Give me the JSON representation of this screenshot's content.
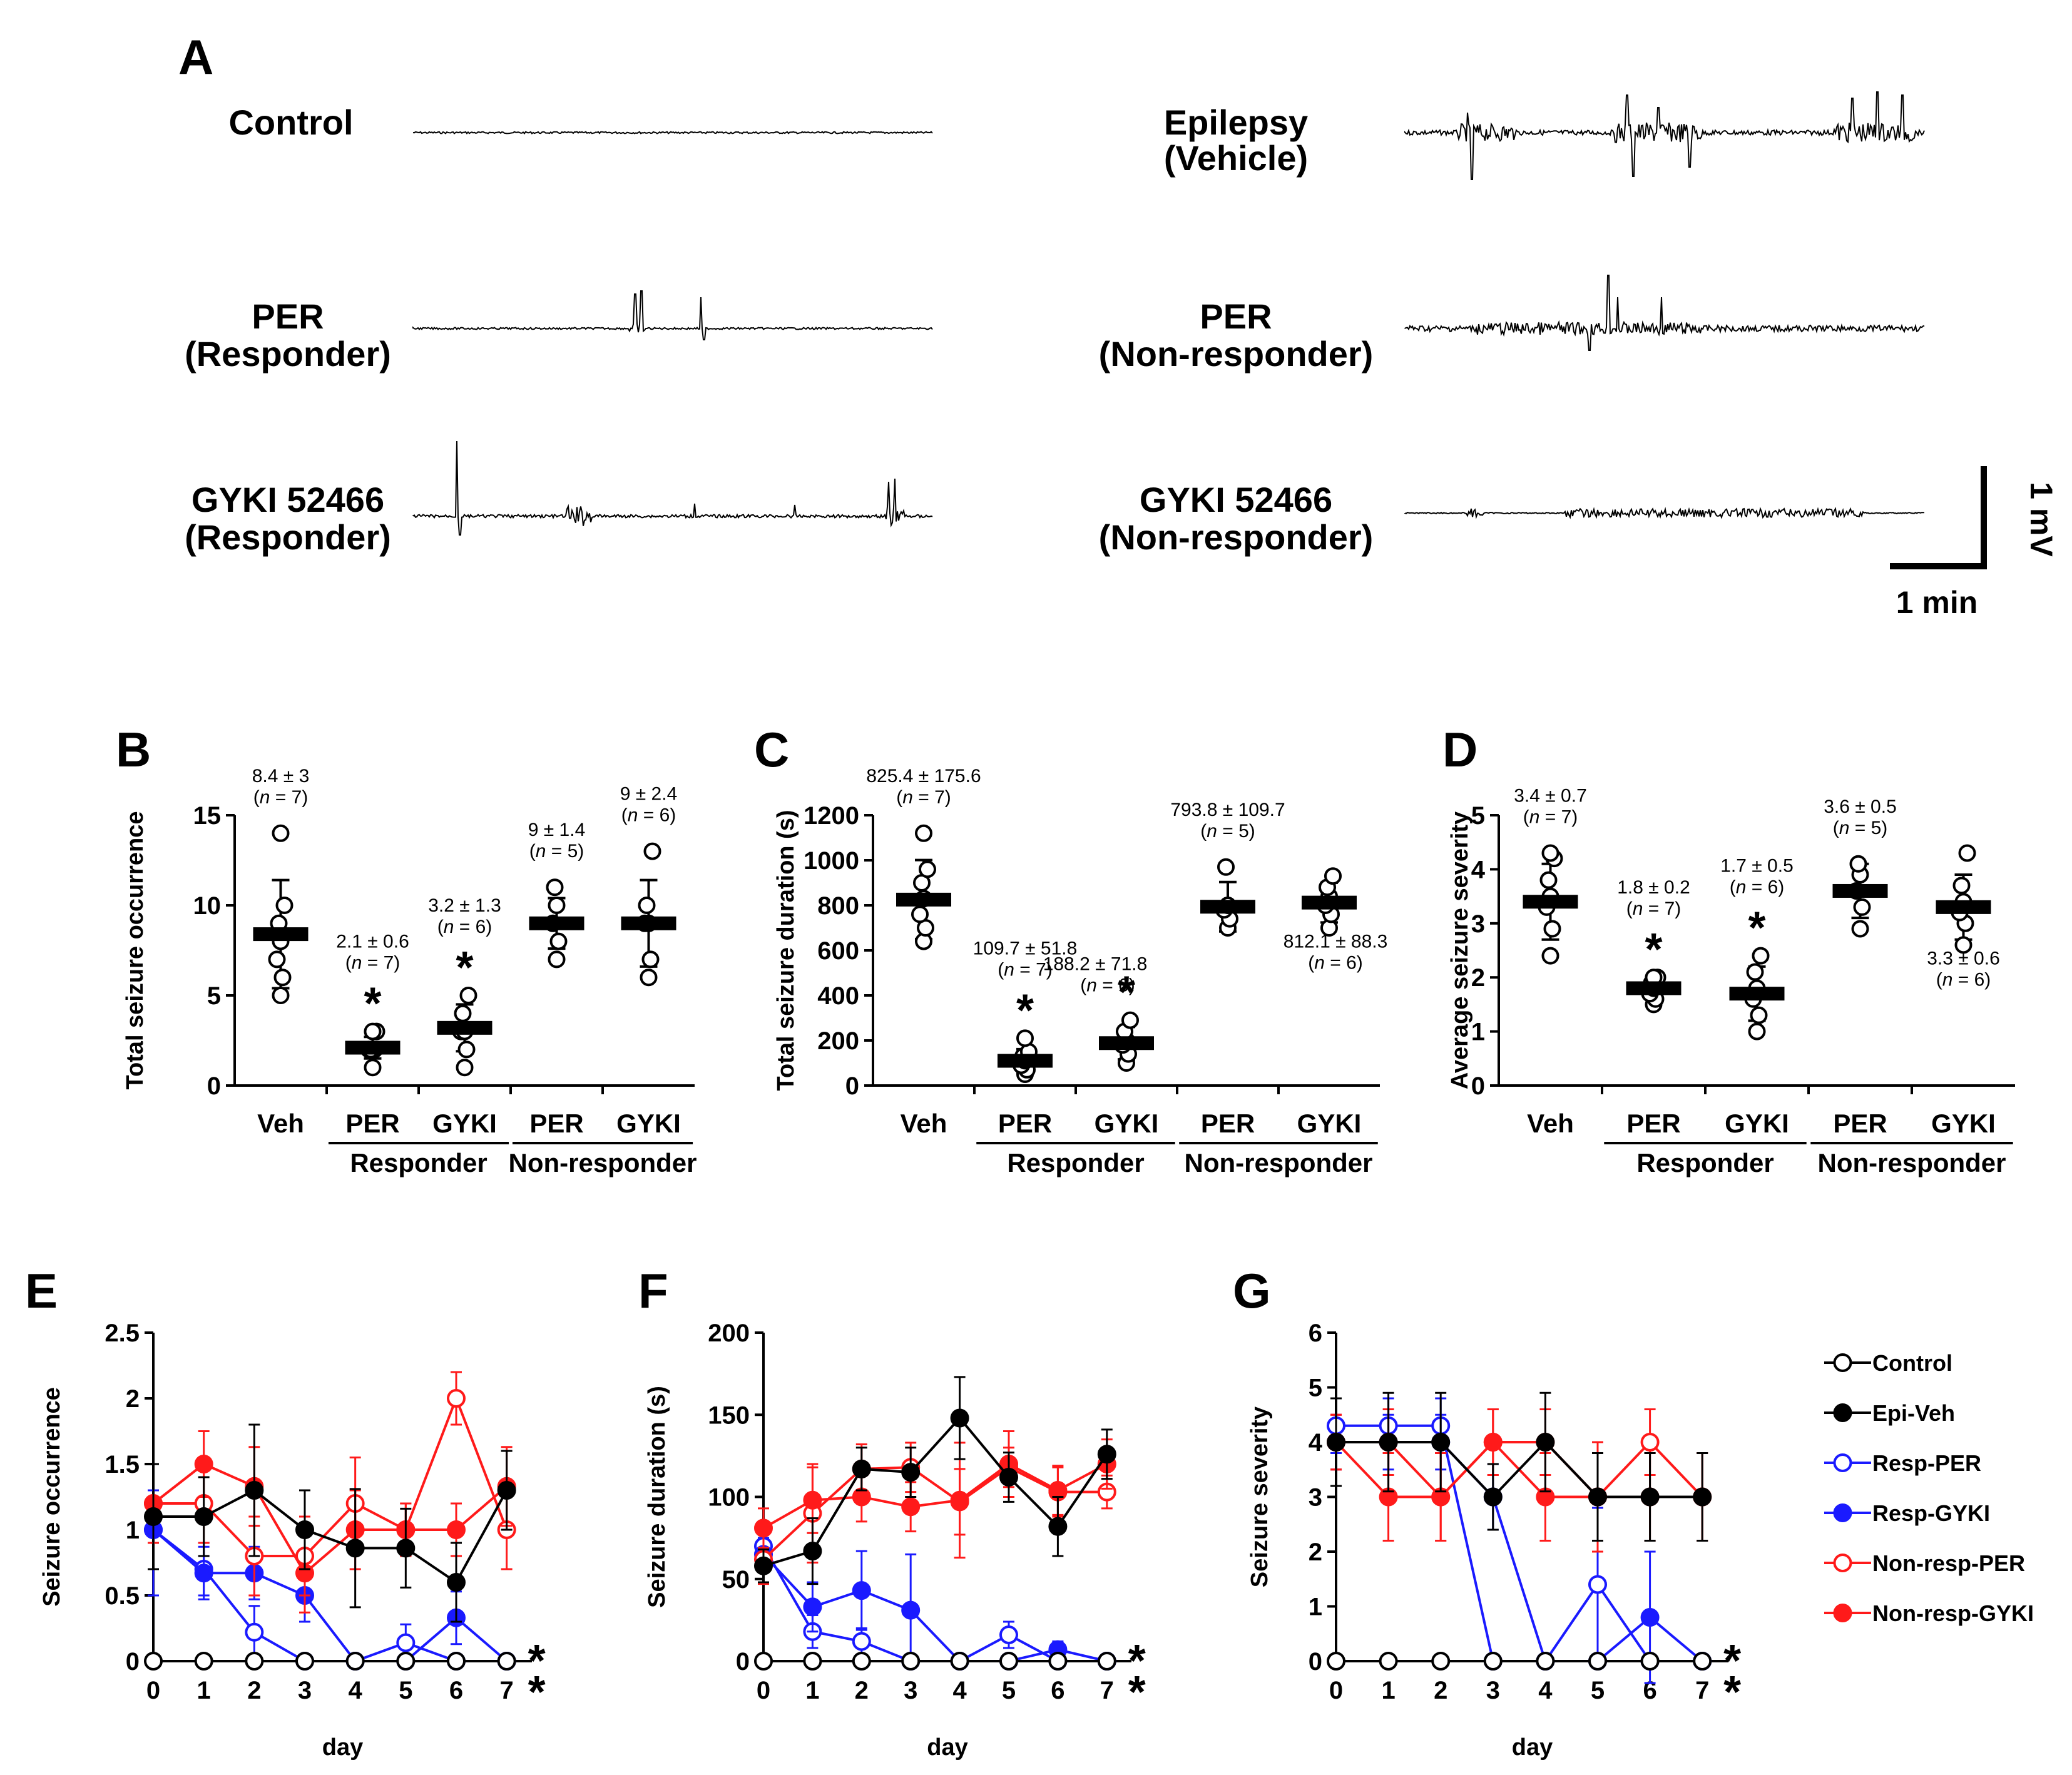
{
  "panel_a": {
    "letter": "A",
    "scale_bar": {
      "voltage": "1 mV",
      "time": "1 min"
    },
    "traces": [
      {
        "key": "control",
        "lines": [
          "Control"
        ]
      },
      {
        "key": "epilepsy",
        "lines": [
          "Epilepsy",
          "(Vehicle)"
        ]
      },
      {
        "key": "per_resp",
        "lines": [
          "PER",
          "(Responder)"
        ]
      },
      {
        "key": "per_nonresp",
        "lines": [
          "PER",
          "(Non-responder)"
        ]
      },
      {
        "key": "gyki_resp",
        "lines": [
          "GYKI 52466",
          "(Responder)"
        ]
      },
      {
        "key": "gyki_nonresp",
        "lines": [
          "GYKI 52466",
          "(Non-responder)"
        ]
      }
    ]
  },
  "chart_data": [
    {
      "id": "B",
      "type": "scatter",
      "letter": "B",
      "ylabel": "Total seizure occurrence",
      "ylim": [
        0,
        15
      ],
      "yticks": [
        0,
        5,
        10,
        15
      ],
      "categories": [
        "Veh",
        "PER",
        "GYKI",
        "PER",
        "GYKI"
      ],
      "group_labels": [
        "Responder",
        "Non-responder"
      ],
      "groups": [
        {
          "mean": 8.4,
          "sd": 3,
          "points": [
            5,
            6,
            7,
            8,
            9,
            10,
            14
          ],
          "ann": [
            "8.4 ± 3",
            "(n = 7)"
          ],
          "star": false
        },
        {
          "mean": 2.1,
          "sd": 0.6,
          "points": [
            1,
            2,
            2,
            2,
            2,
            3,
            3
          ],
          "ann": [
            "2.1 ± 0.6",
            "(n = 7)"
          ],
          "star": true
        },
        {
          "mean": 3.2,
          "sd": 1.3,
          "points": [
            1,
            2,
            3,
            3,
            4,
            5
          ],
          "ann": [
            "3.2 ± 1.3",
            "(n = 6)"
          ],
          "star": true
        },
        {
          "mean": 9,
          "sd": 1.4,
          "points": [
            7,
            8,
            9,
            10,
            11
          ],
          "ann": [
            "9 ± 1.4",
            "(n = 5)"
          ],
          "star": false
        },
        {
          "mean": 9,
          "sd": 2.4,
          "points": [
            6,
            7,
            9,
            9,
            10,
            13
          ],
          "ann": [
            "9 ± 2.4",
            "(n = 6)"
          ],
          "star": false
        }
      ]
    },
    {
      "id": "C",
      "type": "scatter",
      "letter": "C",
      "ylabel": "Total seizure duration (s)",
      "ylim": [
        0,
        1200
      ],
      "yticks": [
        0,
        200,
        400,
        600,
        800,
        1000,
        1200
      ],
      "categories": [
        "Veh",
        "PER",
        "GYKI",
        "PER",
        "GYKI"
      ],
      "group_labels": [
        "Responder",
        "Non-responder"
      ],
      "groups": [
        {
          "mean": 825.4,
          "sd": 175.6,
          "points": [
            640,
            700,
            760,
            830,
            900,
            960,
            1120
          ],
          "ann": [
            "825.4 ± 175.6",
            "(n = 7)"
          ],
          "star": false
        },
        {
          "mean": 109.7,
          "sd": 51.8,
          "points": [
            50,
            70,
            90,
            110,
            130,
            150,
            210
          ],
          "ann": [
            "109.7 ± 51.8",
            "(n = 7)"
          ],
          "star": true
        },
        {
          "mean": 188.2,
          "sd": 71.8,
          "points": [
            100,
            140,
            180,
            200,
            240,
            290
          ],
          "ann": [
            "188.2 ± 71.8",
            "(n = 6)"
          ],
          "star": true
        },
        {
          "mean": 793.8,
          "sd": 109.7,
          "points": [
            700,
            740,
            780,
            800,
            970
          ],
          "ann": [
            "793.8 ± 109.7",
            "(n = 5)"
          ],
          "star": false
        },
        {
          "mean": 812.1,
          "sd": 88.3,
          "points": [
            700,
            760,
            800,
            840,
            880,
            930
          ],
          "ann": [
            "812.1 ± 88.3",
            "(n = 6)"
          ],
          "star": false
        }
      ]
    },
    {
      "id": "D",
      "type": "scatter",
      "letter": "D",
      "ylabel": "Average seizure severity",
      "ylim": [
        0,
        5
      ],
      "yticks": [
        0,
        1,
        2,
        3,
        4,
        5
      ],
      "categories": [
        "Veh",
        "PER",
        "GYKI",
        "PER",
        "GYKI"
      ],
      "group_labels": [
        "Responder",
        "Non-responder"
      ],
      "groups": [
        {
          "mean": 3.4,
          "sd": 0.7,
          "points": [
            2.4,
            2.9,
            3.3,
            3.5,
            3.8,
            4.2,
            4.3
          ],
          "ann": [
            "3.4 ± 0.7",
            "(n = 7)"
          ],
          "star": false
        },
        {
          "mean": 1.8,
          "sd": 0.2,
          "points": [
            1.5,
            1.6,
            1.7,
            1.8,
            1.9,
            2.0,
            2.0
          ],
          "ann": [
            "1.8 ± 0.2",
            "(n = 7)"
          ],
          "star": true
        },
        {
          "mean": 1.7,
          "sd": 0.5,
          "points": [
            1.0,
            1.3,
            1.6,
            1.8,
            2.1,
            2.4
          ],
          "ann": [
            "1.7 ± 0.5",
            "(n = 6)"
          ],
          "star": true
        },
        {
          "mean": 3.6,
          "sd": 0.5,
          "points": [
            2.9,
            3.3,
            3.6,
            3.9,
            4.1
          ],
          "ann": [
            "3.6 ± 0.5",
            "(n = 5)"
          ],
          "star": false
        },
        {
          "mean": 3.3,
          "sd": 0.6,
          "points": [
            2.6,
            3.0,
            3.2,
            3.4,
            3.7,
            4.3
          ],
          "ann": [
            "3.3 ± 0.6",
            "(n = 6)"
          ],
          "star": false
        }
      ]
    },
    {
      "id": "E",
      "type": "line",
      "letter": "E",
      "ylabel": "Seizure occurrence",
      "xlabel": "day",
      "ylim": [
        0,
        2.5
      ],
      "yticks": [
        0,
        0.5,
        1,
        1.5,
        2,
        2.5
      ],
      "x": [
        0,
        1,
        2,
        3,
        4,
        5,
        6,
        7
      ],
      "series": [
        {
          "name": "Control",
          "values": [
            0,
            0,
            0,
            0,
            0,
            0,
            0,
            0
          ],
          "err": [
            0,
            0,
            0,
            0,
            0,
            0,
            0,
            0
          ]
        },
        {
          "name": "Epi-Veh",
          "values": [
            1.1,
            1.1,
            1.3,
            1.0,
            0.86,
            0.86,
            0.6,
            1.3
          ],
          "err": [
            0.4,
            0.3,
            0.5,
            0.3,
            0.45,
            0.3,
            0.3,
            0.3
          ]
        },
        {
          "name": "Resp-PER",
          "values": [
            1.0,
            0.7,
            0.22,
            0,
            0,
            0.14,
            0,
            0
          ],
          "err": [
            0.5,
            0.2,
            0.2,
            0,
            0,
            0.14,
            0,
            0
          ]
        },
        {
          "name": "Resp-GYKI",
          "values": [
            1.0,
            0.67,
            0.67,
            0.5,
            0,
            0,
            0.33,
            0
          ],
          "err": [
            0.3,
            0.2,
            0.2,
            0.2,
            0,
            0,
            0.2,
            0
          ]
        },
        {
          "name": "Non-resp-PER",
          "values": [
            1.2,
            1.2,
            0.8,
            0.8,
            1.2,
            1.0,
            2.0,
            1.0
          ],
          "err": [
            0.3,
            0.3,
            0.3,
            0.3,
            0.35,
            0.2,
            0.2,
            0.3
          ]
        },
        {
          "name": "Non-resp-GYKI",
          "values": [
            1.2,
            1.5,
            1.33,
            0.67,
            1.0,
            1.0,
            1.0,
            1.33
          ],
          "err": [
            0.3,
            0.25,
            0.3,
            0.3,
            0.3,
            0.2,
            0.2,
            0.3
          ]
        }
      ],
      "stars": 2
    },
    {
      "id": "F",
      "type": "line",
      "letter": "F",
      "ylabel": "Seizure duration (s)",
      "xlabel": "day",
      "ylim": [
        0,
        200
      ],
      "yticks": [
        0,
        50,
        100,
        150,
        200
      ],
      "x": [
        0,
        1,
        2,
        3,
        4,
        5,
        6,
        7
      ],
      "series": [
        {
          "name": "Control",
          "values": [
            0,
            0,
            0,
            0,
            0,
            0,
            0,
            0
          ],
          "err": [
            0,
            0,
            0,
            0,
            0,
            0,
            0,
            0
          ]
        },
        {
          "name": "Epi-Veh",
          "values": [
            58,
            67,
            117,
            115,
            148,
            112,
            82,
            126
          ],
          "err": [
            10,
            20,
            13,
            15,
            25,
            15,
            18,
            15
          ]
        },
        {
          "name": "Resp-PER",
          "values": [
            70,
            18,
            12,
            0,
            0,
            16,
            0,
            0
          ],
          "err": [
            10,
            10,
            8,
            0,
            0,
            8,
            0,
            0
          ]
        },
        {
          "name": "Resp-GYKI",
          "values": [
            65,
            33,
            43,
            31,
            0,
            0,
            7,
            0
          ],
          "err": [
            10,
            15,
            24,
            34,
            0,
            0,
            5,
            0
          ]
        },
        {
          "name": "Non-resp-PER",
          "values": [
            62,
            90,
            117,
            118,
            97,
            118,
            103,
            103
          ],
          "err": [
            15,
            30,
            15,
            15,
            20,
            12,
            15,
            10
          ]
        },
        {
          "name": "Non-resp-GYKI",
          "values": [
            81,
            98,
            100,
            94,
            98,
            120,
            104,
            120
          ],
          "err": [
            12,
            20,
            15,
            15,
            35,
            20,
            15,
            15
          ]
        }
      ],
      "stars": 2
    },
    {
      "id": "G",
      "type": "line",
      "letter": "G",
      "ylabel": "Seizure severity",
      "xlabel": "day",
      "ylim": [
        0,
        6
      ],
      "yticks": [
        0,
        1,
        2,
        3,
        4,
        5,
        6
      ],
      "x": [
        0,
        1,
        2,
        3,
        4,
        5,
        6,
        7
      ],
      "series": [
        {
          "name": "Control",
          "values": [
            0,
            0,
            0,
            0,
            0,
            0,
            0,
            0
          ],
          "err": [
            0,
            0,
            0,
            0,
            0,
            0,
            0,
            0
          ]
        },
        {
          "name": "Epi-Veh",
          "values": [
            4,
            4,
            4,
            3,
            4,
            3,
            3,
            3
          ],
          "err": [
            0.8,
            0.9,
            0.9,
            0.6,
            0.9,
            0.8,
            0.8,
            0.8
          ]
        },
        {
          "name": "Resp-PER",
          "values": [
            4.3,
            4.3,
            4.3,
            0,
            0,
            1.4,
            0,
            0
          ],
          "err": [
            0.5,
            0.5,
            0.5,
            0,
            0,
            1.4,
            0,
            0
          ]
        },
        {
          "name": "Resp-GYKI",
          "values": [
            4,
            4,
            4,
            3,
            0,
            0,
            0.8,
            0
          ],
          "err": [
            0.5,
            0.5,
            0.5,
            0.6,
            0,
            0,
            1.2,
            0
          ]
        },
        {
          "name": "Non-resp-PER",
          "values": [
            4,
            4,
            3,
            4,
            4,
            3,
            4,
            3
          ],
          "err": [
            0.5,
            0.6,
            0.8,
            0.6,
            0.6,
            1.0,
            0.6,
            0.8
          ]
        },
        {
          "name": "Non-resp-GYKI",
          "values": [
            4,
            3,
            3,
            4,
            3,
            3,
            3,
            3
          ],
          "err": [
            0.5,
            0.8,
            0.8,
            0.6,
            0.8,
            0.8,
            0.8,
            0.8
          ]
        }
      ],
      "stars": 2
    }
  ],
  "legend": {
    "items": [
      {
        "name": "Control",
        "color": "#000000",
        "filled": false
      },
      {
        "name": "Epi-Veh",
        "color": "#000000",
        "filled": true
      },
      {
        "name": "Resp-PER",
        "color": "#1a1aff",
        "filled": false
      },
      {
        "name": "Resp-GYKI",
        "color": "#1a1aff",
        "filled": true
      },
      {
        "name": "Non-resp-PER",
        "color": "#ff1a1a",
        "filled": false
      },
      {
        "name": "Non-resp-GYKI",
        "color": "#ff1a1a",
        "filled": true
      }
    ]
  },
  "star_symbol": "*",
  "colors": {
    "black": "#000000",
    "blue": "#1a1aff",
    "red": "#ff1a1a"
  }
}
